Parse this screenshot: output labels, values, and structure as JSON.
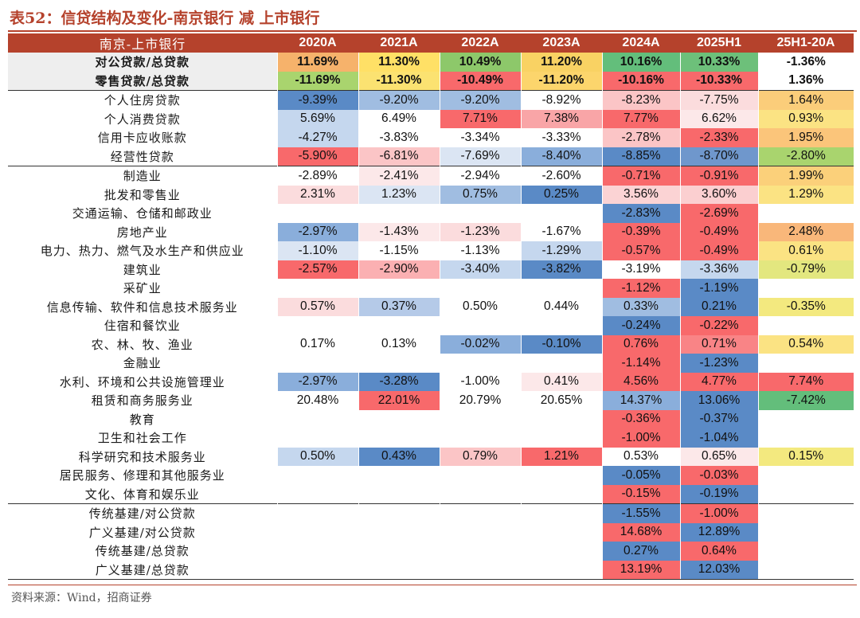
{
  "title": "表52：信贷结构及变化-南京银行 减 上市银行",
  "source": "资料来源：Wind，招商证券",
  "columns": [
    "南京-上市银行",
    "2020A",
    "2021A",
    "2022A",
    "2023A",
    "2024A",
    "2025H1",
    "25H1-20A"
  ],
  "rows": [
    {
      "label": "对公贷款/总贷款",
      "style": "bold",
      "cells": [
        {
          "v": "11.69%",
          "c": "#f6b26b"
        },
        {
          "v": "11.30%",
          "c": "#ffe066"
        },
        {
          "v": "10.49%",
          "c": "#8dc86a"
        },
        {
          "v": "11.20%",
          "c": "#f9d263"
        },
        {
          "v": "10.16%",
          "c": "#63be7b"
        },
        {
          "v": "10.33%",
          "c": "#6dc07a"
        },
        {
          "v": "-1.36%",
          "c": ""
        }
      ]
    },
    {
      "label": "零售贷款/总贷款",
      "style": "bold",
      "cells": [
        {
          "v": "-11.69%",
          "c": "#a9d46e"
        },
        {
          "v": "-11.30%",
          "c": "#fbe271"
        },
        {
          "v": "-10.49%",
          "c": "#f8696b"
        },
        {
          "v": "-11.20%",
          "c": "#fcd56c"
        },
        {
          "v": "-10.16%",
          "c": "#f8696b"
        },
        {
          "v": "-10.33%",
          "c": "#f8696b"
        },
        {
          "v": "1.36%",
          "c": ""
        }
      ]
    },
    {
      "label": "个人住房贷款",
      "style": "sep",
      "cells": [
        {
          "v": "-9.39%",
          "c": "#5a8ac6"
        },
        {
          "v": "-9.20%",
          "c": "#a0bde1"
        },
        {
          "v": "-9.20%",
          "c": "#a0bde1"
        },
        {
          "v": "-8.92%",
          "c": "#ffffff"
        },
        {
          "v": "-8.23%",
          "c": "#fbc5c6"
        },
        {
          "v": "-7.75%",
          "c": "#fbdcdd"
        },
        {
          "v": "1.64%",
          "c": "#fbcd7a"
        }
      ]
    },
    {
      "label": "个人消费贷款",
      "style": "",
      "cells": [
        {
          "v": "5.69%",
          "c": "#c5d7ee"
        },
        {
          "v": "6.49%",
          "c": "#ffffff"
        },
        {
          "v": "7.71%",
          "c": "#f8696b"
        },
        {
          "v": "7.38%",
          "c": "#f9a5a7"
        },
        {
          "v": "7.77%",
          "c": "#f8696b"
        },
        {
          "v": "6.62%",
          "c": "#fce8e9"
        },
        {
          "v": "0.93%",
          "c": "#fbe383"
        }
      ]
    },
    {
      "label": "信用卡应收账款",
      "style": "",
      "cells": [
        {
          "v": "-4.27%",
          "c": "#c5d7ee"
        },
        {
          "v": "-3.83%",
          "c": "#ffffff"
        },
        {
          "v": "-3.34%",
          "c": "#ffffff"
        },
        {
          "v": "-3.33%",
          "c": "#ffffff"
        },
        {
          "v": "-2.78%",
          "c": "#fbc5c6"
        },
        {
          "v": "-2.33%",
          "c": "#f8696b"
        },
        {
          "v": "1.95%",
          "c": "#fbc57a"
        }
      ]
    },
    {
      "label": "经营性贷款",
      "style": "",
      "cells": [
        {
          "v": "-5.90%",
          "c": "#f8696b"
        },
        {
          "v": "-6.81%",
          "c": "#fbc5c6"
        },
        {
          "v": "-7.69%",
          "c": "#dbe5f3"
        },
        {
          "v": "-8.40%",
          "c": "#8aaedb"
        },
        {
          "v": "-8.85%",
          "c": "#5a8ac6"
        },
        {
          "v": "-8.70%",
          "c": "#6f97cc"
        },
        {
          "v": "-2.80%",
          "c": "#a9d46e"
        }
      ]
    },
    {
      "label": "制造业",
      "style": "sep",
      "cells": [
        {
          "v": "-2.89%",
          "c": "#ffffff"
        },
        {
          "v": "-2.41%",
          "c": "#fce8e9"
        },
        {
          "v": "-2.94%",
          "c": "#ffffff"
        },
        {
          "v": "-2.60%",
          "c": "#ffffff"
        },
        {
          "v": "-0.71%",
          "c": "#f8696b"
        },
        {
          "v": "-0.91%",
          "c": "#f8696b"
        },
        {
          "v": "1.99%",
          "c": "#fbd07a"
        }
      ]
    },
    {
      "label": "批发和零售业",
      "style": "",
      "cells": [
        {
          "v": "2.31%",
          "c": "#fbdcdd"
        },
        {
          "v": "1.23%",
          "c": "#dbe5f3"
        },
        {
          "v": "0.75%",
          "c": "#a0bde1"
        },
        {
          "v": "0.25%",
          "c": "#5a8ac6"
        },
        {
          "v": "3.56%",
          "c": "#fbd3d4"
        },
        {
          "v": "3.60%",
          "c": "#fbcfd0"
        },
        {
          "v": "1.29%",
          "c": "#fbe383"
        }
      ]
    },
    {
      "label": "交通运输、仓储和邮政业",
      "style": "",
      "cells": [
        {
          "v": "",
          "c": ""
        },
        {
          "v": "",
          "c": ""
        },
        {
          "v": "",
          "c": ""
        },
        {
          "v": "",
          "c": ""
        },
        {
          "v": "-2.83%",
          "c": "#5a8ac6"
        },
        {
          "v": "-2.69%",
          "c": "#f8696b"
        },
        {
          "v": "",
          "c": ""
        }
      ]
    },
    {
      "label": "房地产业",
      "style": "",
      "cells": [
        {
          "v": "-2.97%",
          "c": "#8aaedb"
        },
        {
          "v": "-1.43%",
          "c": "#fce8e9"
        },
        {
          "v": "-1.23%",
          "c": "#fbdcdd"
        },
        {
          "v": "-1.67%",
          "c": "#ffffff"
        },
        {
          "v": "-0.39%",
          "c": "#f8696b"
        },
        {
          "v": "-0.49%",
          "c": "#f8696b"
        },
        {
          "v": "2.48%",
          "c": "#f9b77a"
        }
      ]
    },
    {
      "label": "电力、热力、燃气及水生产和供应业",
      "style": "",
      "cells": [
        {
          "v": "-1.10%",
          "c": "#dbe5f3"
        },
        {
          "v": "-1.15%",
          "c": "#ffffff"
        },
        {
          "v": "-1.13%",
          "c": "#ffffff"
        },
        {
          "v": "-1.29%",
          "c": "#c5d7ee"
        },
        {
          "v": "-0.57%",
          "c": "#f8696b"
        },
        {
          "v": "-0.49%",
          "c": "#f8696b"
        },
        {
          "v": "0.61%",
          "c": "#fbe383"
        }
      ]
    },
    {
      "label": "建筑业",
      "style": "",
      "cells": [
        {
          "v": "-2.57%",
          "c": "#f8696b"
        },
        {
          "v": "-2.90%",
          "c": "#fbb0b2"
        },
        {
          "v": "-3.40%",
          "c": "#c5d7ee"
        },
        {
          "v": "-3.82%",
          "c": "#5a8ac6"
        },
        {
          "v": "-3.19%",
          "c": "#ffffff"
        },
        {
          "v": "-3.36%",
          "c": "#c5d7ee"
        },
        {
          "v": "-0.79%",
          "c": "#e3e77f"
        }
      ]
    },
    {
      "label": "采矿业",
      "style": "",
      "cells": [
        {
          "v": "",
          "c": ""
        },
        {
          "v": "",
          "c": ""
        },
        {
          "v": "",
          "c": ""
        },
        {
          "v": "",
          "c": ""
        },
        {
          "v": "-1.12%",
          "c": "#f8696b"
        },
        {
          "v": "-1.19%",
          "c": "#5a8ac6"
        },
        {
          "v": "",
          "c": ""
        }
      ]
    },
    {
      "label": "信息传输、软件和信息技术服务业",
      "style": "",
      "cells": [
        {
          "v": "0.57%",
          "c": "#fbdcdd"
        },
        {
          "v": "0.37%",
          "c": "#b5cae8"
        },
        {
          "v": "0.50%",
          "c": "#ffffff"
        },
        {
          "v": "0.44%",
          "c": "#ffffff"
        },
        {
          "v": "0.33%",
          "c": "#a0bde1"
        },
        {
          "v": "0.21%",
          "c": "#5a8ac6"
        },
        {
          "v": "-0.35%",
          "c": "#f3e97f"
        }
      ]
    },
    {
      "label": "住宿和餐饮业",
      "style": "",
      "cells": [
        {
          "v": "",
          "c": ""
        },
        {
          "v": "",
          "c": ""
        },
        {
          "v": "",
          "c": ""
        },
        {
          "v": "",
          "c": ""
        },
        {
          "v": "-0.24%",
          "c": "#5a8ac6"
        },
        {
          "v": "-0.22%",
          "c": "#f8696b"
        },
        {
          "v": "",
          "c": ""
        }
      ]
    },
    {
      "label": "农、林、牧、渔业",
      "style": "",
      "cells": [
        {
          "v": "0.17%",
          "c": "#ffffff"
        },
        {
          "v": "0.13%",
          "c": "#ffffff"
        },
        {
          "v": "-0.02%",
          "c": "#8aaedb"
        },
        {
          "v": "-0.10%",
          "c": "#5a8ac6"
        },
        {
          "v": "0.76%",
          "c": "#f8696b"
        },
        {
          "v": "0.71%",
          "c": "#f98486"
        },
        {
          "v": "0.54%",
          "c": "#fbe383"
        }
      ]
    },
    {
      "label": "金融业",
      "style": "",
      "cells": [
        {
          "v": "",
          "c": ""
        },
        {
          "v": "",
          "c": ""
        },
        {
          "v": "",
          "c": ""
        },
        {
          "v": "",
          "c": ""
        },
        {
          "v": "-1.14%",
          "c": "#f8696b"
        },
        {
          "v": "-1.23%",
          "c": "#5a8ac6"
        },
        {
          "v": "",
          "c": ""
        }
      ]
    },
    {
      "label": "水利、环境和公共设施管理业",
      "style": "",
      "cells": [
        {
          "v": "-2.97%",
          "c": "#8aaedb"
        },
        {
          "v": "-3.28%",
          "c": "#5a8ac6"
        },
        {
          "v": "-1.00%",
          "c": "#ffffff"
        },
        {
          "v": "0.41%",
          "c": "#fce8e9"
        },
        {
          "v": "4.56%",
          "c": "#f8696b"
        },
        {
          "v": "4.77%",
          "c": "#f8696b"
        },
        {
          "v": "7.74%",
          "c": "#f8696b"
        }
      ]
    },
    {
      "label": "租赁和商务服务业",
      "style": "",
      "cells": [
        {
          "v": "20.48%",
          "c": "#ffffff"
        },
        {
          "v": "22.01%",
          "c": "#f8696b"
        },
        {
          "v": "20.79%",
          "c": "#ffffff"
        },
        {
          "v": "20.65%",
          "c": "#ffffff"
        },
        {
          "v": "14.37%",
          "c": "#8aaedb"
        },
        {
          "v": "13.06%",
          "c": "#5a8ac6"
        },
        {
          "v": "-7.42%",
          "c": "#63be7b"
        }
      ]
    },
    {
      "label": "教育",
      "style": "",
      "cells": [
        {
          "v": "",
          "c": ""
        },
        {
          "v": "",
          "c": ""
        },
        {
          "v": "",
          "c": ""
        },
        {
          "v": "",
          "c": ""
        },
        {
          "v": "-0.36%",
          "c": "#f8696b"
        },
        {
          "v": "-0.37%",
          "c": "#5a8ac6"
        },
        {
          "v": "",
          "c": ""
        }
      ]
    },
    {
      "label": "卫生和社会工作",
      "style": "",
      "cells": [
        {
          "v": "",
          "c": ""
        },
        {
          "v": "",
          "c": ""
        },
        {
          "v": "",
          "c": ""
        },
        {
          "v": "",
          "c": ""
        },
        {
          "v": "-1.00%",
          "c": "#f8696b"
        },
        {
          "v": "-1.04%",
          "c": "#5a8ac6"
        },
        {
          "v": "",
          "c": ""
        }
      ]
    },
    {
      "label": "科学研究和技术服务业",
      "style": "",
      "cells": [
        {
          "v": "0.50%",
          "c": "#c5d7ee"
        },
        {
          "v": "0.43%",
          "c": "#5a8ac6"
        },
        {
          "v": "0.79%",
          "c": "#fbc5c6"
        },
        {
          "v": "1.21%",
          "c": "#f8696b"
        },
        {
          "v": "0.53%",
          "c": "#ffffff"
        },
        {
          "v": "0.65%",
          "c": "#fce8e9"
        },
        {
          "v": "0.15%",
          "c": "#f3e97f"
        }
      ]
    },
    {
      "label": "居民服务、修理和其他服务业",
      "style": "",
      "cells": [
        {
          "v": "",
          "c": ""
        },
        {
          "v": "",
          "c": ""
        },
        {
          "v": "",
          "c": ""
        },
        {
          "v": "",
          "c": ""
        },
        {
          "v": "-0.05%",
          "c": "#5a8ac6"
        },
        {
          "v": "-0.03%",
          "c": "#f8696b"
        },
        {
          "v": "",
          "c": ""
        }
      ]
    },
    {
      "label": "文化、体育和娱乐业",
      "style": "",
      "cells": [
        {
          "v": "",
          "c": ""
        },
        {
          "v": "",
          "c": ""
        },
        {
          "v": "",
          "c": ""
        },
        {
          "v": "",
          "c": ""
        },
        {
          "v": "-0.15%",
          "c": "#f8696b"
        },
        {
          "v": "-0.19%",
          "c": "#5a8ac6"
        },
        {
          "v": "",
          "c": ""
        }
      ]
    },
    {
      "label": "传统基建/对公贷款",
      "style": "sep",
      "cells": [
        {
          "v": "",
          "c": ""
        },
        {
          "v": "",
          "c": ""
        },
        {
          "v": "",
          "c": ""
        },
        {
          "v": "",
          "c": ""
        },
        {
          "v": "-1.55%",
          "c": "#5a8ac6"
        },
        {
          "v": "-1.00%",
          "c": "#f8696b"
        },
        {
          "v": "",
          "c": ""
        }
      ]
    },
    {
      "label": "广义基建/对公贷款",
      "style": "",
      "cells": [
        {
          "v": "",
          "c": ""
        },
        {
          "v": "",
          "c": ""
        },
        {
          "v": "",
          "c": ""
        },
        {
          "v": "",
          "c": ""
        },
        {
          "v": "14.68%",
          "c": "#f8696b"
        },
        {
          "v": "12.89%",
          "c": "#5a8ac6"
        },
        {
          "v": "",
          "c": ""
        }
      ]
    },
    {
      "label": "传统基建/总贷款",
      "style": "",
      "cells": [
        {
          "v": "",
          "c": ""
        },
        {
          "v": "",
          "c": ""
        },
        {
          "v": "",
          "c": ""
        },
        {
          "v": "",
          "c": ""
        },
        {
          "v": "0.27%",
          "c": "#5a8ac6"
        },
        {
          "v": "0.64%",
          "c": "#f8696b"
        },
        {
          "v": "",
          "c": ""
        }
      ]
    },
    {
      "label": "广义基建/总贷款",
      "style": "last",
      "cells": [
        {
          "v": "",
          "c": ""
        },
        {
          "v": "",
          "c": ""
        },
        {
          "v": "",
          "c": ""
        },
        {
          "v": "",
          "c": ""
        },
        {
          "v": "13.19%",
          "c": "#f8696b"
        },
        {
          "v": "12.03%",
          "c": "#5a8ac6"
        },
        {
          "v": "",
          "c": ""
        }
      ]
    }
  ]
}
